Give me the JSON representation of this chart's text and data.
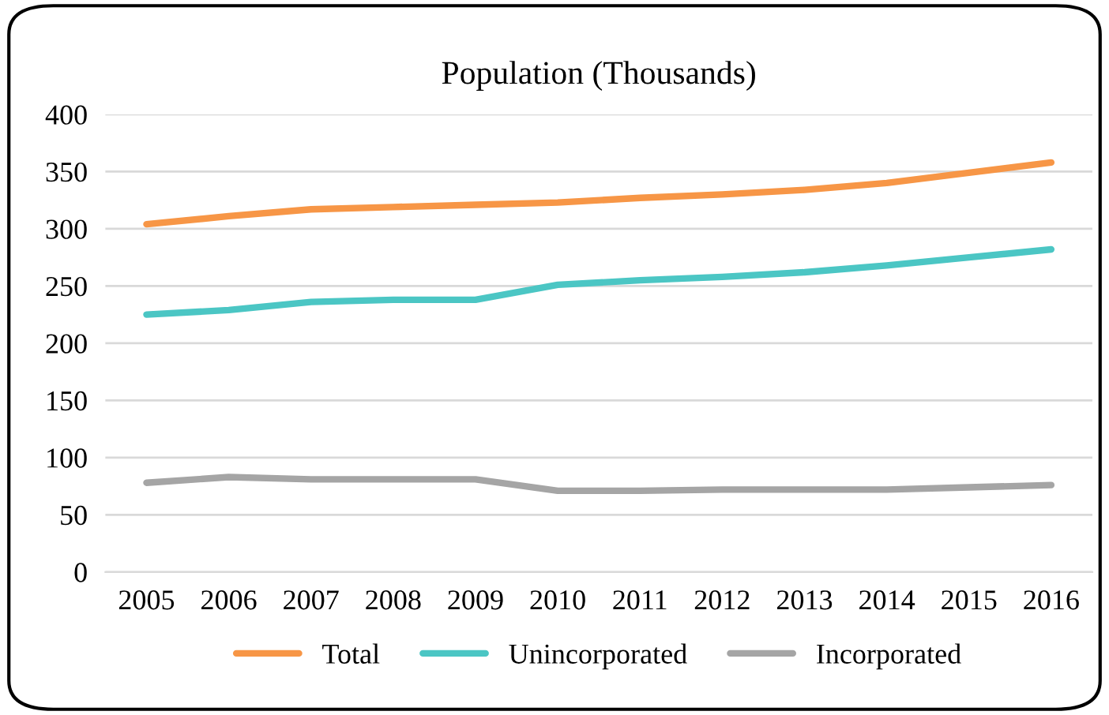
{
  "chart_data": {
    "type": "line",
    "title": "Population (Thousands)",
    "categories": [
      "2005",
      "2006",
      "2007",
      "2008",
      "2009",
      "2010",
      "2011",
      "2012",
      "2013",
      "2014",
      "2015",
      "2016"
    ],
    "series": [
      {
        "name": "Total",
        "color": "#f79646",
        "values": [
          304,
          311,
          317,
          319,
          321,
          323,
          327,
          330,
          334,
          340,
          349,
          358
        ]
      },
      {
        "name": "Unincorporated",
        "color": "#4bc6c4",
        "values": [
          225,
          229,
          236,
          238,
          238,
          251,
          255,
          258,
          262,
          268,
          275,
          282
        ]
      },
      {
        "name": "Incorporated",
        "color": "#a5a5a5",
        "values": [
          78,
          83,
          81,
          81,
          81,
          71,
          71,
          72,
          72,
          72,
          74,
          76
        ]
      }
    ],
    "ylim": [
      0,
      400
    ],
    "yticks": [
      0,
      50,
      100,
      150,
      200,
      250,
      300,
      350,
      400
    ],
    "grid": "y",
    "legend": "bottom",
    "marker": "none",
    "line_style": "solid"
  }
}
